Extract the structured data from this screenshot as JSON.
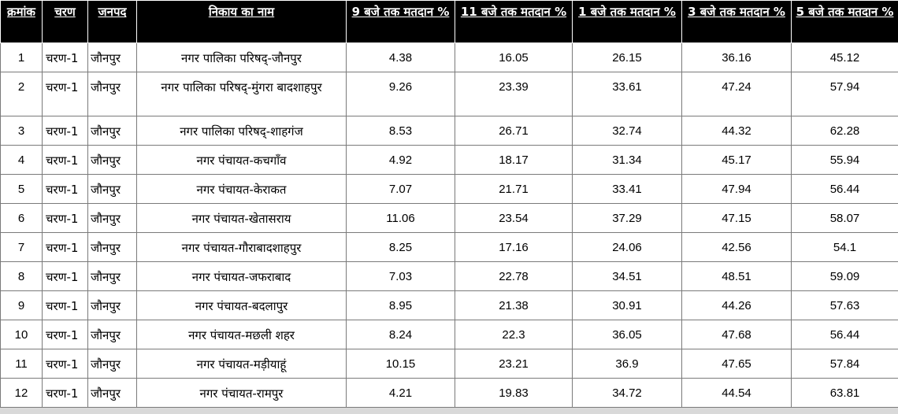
{
  "table": {
    "headers": [
      "क्रमांक",
      "चरण",
      "जनपद",
      "निकाय का नाम",
      "9 बजे तक मतदान %",
      "11 बजे तक मतदान %",
      "1 बजे तक मतदान %",
      "3 बजे तक मतदान %",
      "5 बजे तक मतदान %"
    ],
    "rows": [
      [
        "1",
        "चरण-1",
        "जौनपुर",
        "नगर पालिका परिषद्-जौनपुर",
        "4.38",
        "16.05",
        "26.15",
        "36.16",
        "45.12"
      ],
      [
        "2",
        "चरण-1",
        "जौनपुर",
        "नगर पालिका परिषद्-मुंगरा बादशाहपुर",
        "9.26",
        "23.39",
        "33.61",
        "47.24",
        "57.94"
      ],
      [
        "3",
        "चरण-1",
        "जौनपुर",
        "नगर पालिका परिषद्-शाहगंज",
        "8.53",
        "26.71",
        "32.74",
        "44.32",
        "62.28"
      ],
      [
        "4",
        "चरण-1",
        "जौनपुर",
        "नगर पंचायत-कचगाँव",
        "4.92",
        "18.17",
        "31.34",
        "45.17",
        "55.94"
      ],
      [
        "5",
        "चरण-1",
        "जौनपुर",
        "नगर पंचायत-केराकत",
        "7.07",
        "21.71",
        "33.41",
        "47.94",
        "56.44"
      ],
      [
        "6",
        "चरण-1",
        "जौनपुर",
        "नगर पंचायत-खेतासराय",
        "11.06",
        "23.54",
        "37.29",
        "47.15",
        "58.07"
      ],
      [
        "7",
        "चरण-1",
        "जौनपुर",
        "नगर पंचायत-गौराबादशाहपुर",
        "8.25",
        "17.16",
        "24.06",
        "42.56",
        "54.1"
      ],
      [
        "8",
        "चरण-1",
        "जौनपुर",
        "नगर पंचायत-जफराबाद",
        "7.03",
        "22.78",
        "34.51",
        "48.51",
        "59.09"
      ],
      [
        "9",
        "चरण-1",
        "जौनपुर",
        "नगर पंचायत-बदलापुर",
        "8.95",
        "21.38",
        "30.91",
        "44.26",
        "57.63"
      ],
      [
        "10",
        "चरण-1",
        "जौनपुर",
        "नगर पंचायत-मछली शहर",
        "8.24",
        "22.3",
        "36.05",
        "47.68",
        "56.44"
      ],
      [
        "11",
        "चरण-1",
        "जौनपुर",
        "नगर पंचायत-मड़ीयाहूं",
        "10.15",
        "23.21",
        "36.9",
        "47.65",
        "57.84"
      ],
      [
        "12",
        "चरण-1",
        "जौनपुर",
        "नगर पंचायत-रामपुर",
        "4.21",
        "19.83",
        "34.72",
        "44.54",
        "63.81"
      ]
    ]
  }
}
